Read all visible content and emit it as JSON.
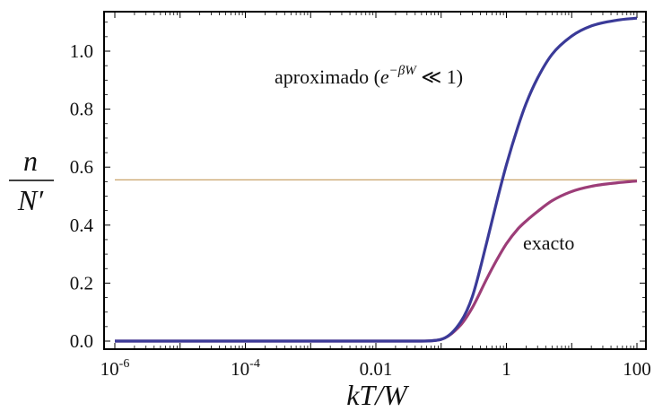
{
  "chart_data": {
    "type": "line",
    "title": "",
    "xlabel": "kT/W",
    "ylabel": {
      "numerator": "n",
      "denominator": "N′"
    },
    "xscale": "log10",
    "xlim": [
      1e-06,
      100
    ],
    "ylim": [
      0,
      1.1
    ],
    "grid": false,
    "xticks": [
      {
        "value": 1e-06,
        "label": "10",
        "sup": "-6"
      },
      {
        "value": 0.0001,
        "label": "10",
        "sup": "-4"
      },
      {
        "value": 0.01,
        "label": "0.01",
        "sup": ""
      },
      {
        "value": 1,
        "label": "1",
        "sup": ""
      },
      {
        "value": 100,
        "label": "100",
        "sup": ""
      }
    ],
    "yticks": [
      {
        "value": 0.0,
        "label": "0.0"
      },
      {
        "value": 0.2,
        "label": "0.2"
      },
      {
        "value": 0.4,
        "label": "0.4"
      },
      {
        "value": 0.6,
        "label": "0.6"
      },
      {
        "value": 0.8,
        "label": "0.8"
      },
      {
        "value": 1.0,
        "label": "1.0"
      }
    ],
    "series": [
      {
        "color": "#3a3a98",
        "label": "aproximado",
        "x": [
          1e-06,
          0.0001,
          0.01,
          0.05,
          0.1,
          0.2,
          0.3,
          0.5,
          0.7,
          1,
          1.5,
          2,
          3,
          5,
          10,
          20,
          50,
          100
        ],
        "values": [
          0.0,
          0.0,
          0.0,
          0.0,
          0.006,
          0.067,
          0.153,
          0.341,
          0.475,
          0.608,
          0.739,
          0.819,
          0.907,
          0.989,
          1.052,
          1.087,
          1.107,
          1.114
        ]
      },
      {
        "color": "#9c3d78",
        "label": "exacto",
        "x": [
          1e-06,
          0.0001,
          0.01,
          0.05,
          0.1,
          0.2,
          0.3,
          0.5,
          0.7,
          1,
          1.5,
          2,
          3,
          5,
          10,
          20,
          50,
          100
        ],
        "values": [
          0.0,
          0.0,
          0.0,
          0.0,
          0.006,
          0.056,
          0.115,
          0.215,
          0.277,
          0.336,
          0.387,
          0.414,
          0.447,
          0.484,
          0.516,
          0.534,
          0.546,
          0.552
        ]
      },
      {
        "color": "#c9a36a",
        "label": "",
        "x": [
          1e-06,
          100
        ],
        "values": [
          0.556,
          0.556
        ]
      }
    ],
    "annotations": [
      {
        "text": "aproximado (",
        "math": "e",
        "sup": "−βW",
        "tail": " ≪ 1)",
        "x": 0.0003,
        "y": 0.9
      },
      {
        "text": "exacto",
        "x": 3.5,
        "y": 0.37
      }
    ]
  }
}
